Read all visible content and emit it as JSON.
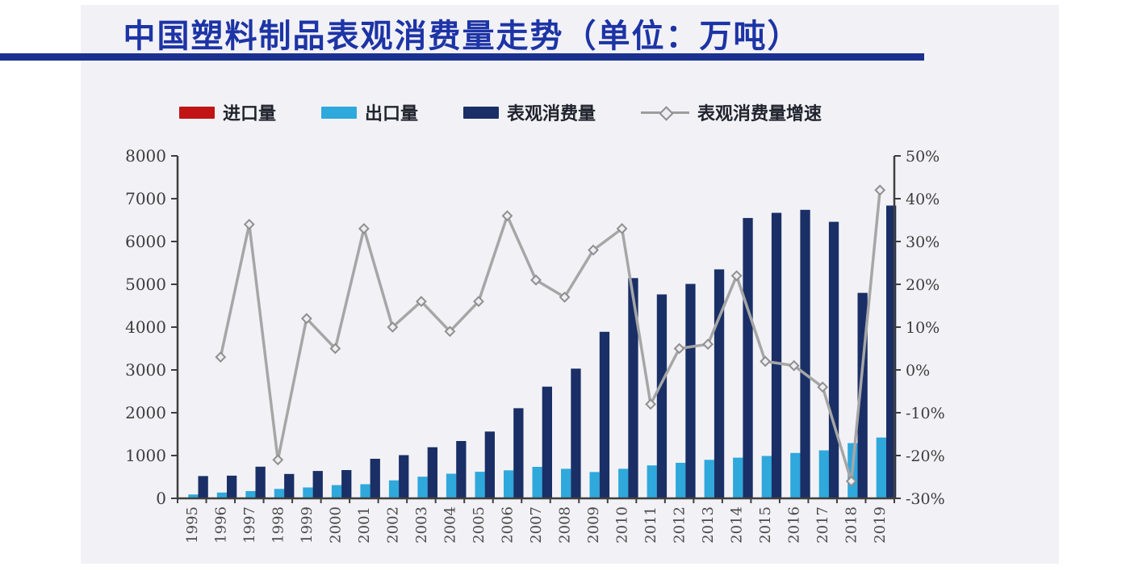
{
  "title": {
    "text": "中国塑料制品表观消费量走势（单位：万吨）",
    "color": "#1d34a6",
    "rule_color": "#1b318f"
  },
  "legend": {
    "items": [
      {
        "label": "进口量",
        "swatch": "bar",
        "color": "#c11515"
      },
      {
        "label": "出口量",
        "swatch": "bar",
        "color": "#2fa8dc"
      },
      {
        "label": "表观消费量",
        "swatch": "bar",
        "color": "#1a2f66"
      },
      {
        "label": "表观消费量增速",
        "swatch": "line",
        "color": "#9d9d9d"
      }
    ]
  },
  "chart_data": {
    "type": "bar",
    "title": "中国塑料制品表观消费量走势（单位：万吨）",
    "categories": [
      "1995",
      "1996",
      "1997",
      "1998",
      "1999",
      "2000",
      "2001",
      "2002",
      "2003",
      "2004",
      "2005",
      "2006",
      "2007",
      "2008",
      "2009",
      "2010",
      "2011",
      "2012",
      "2013",
      "2014",
      "2015",
      "2016",
      "2017",
      "2018",
      "2019"
    ],
    "series": [
      {
        "name": "进口量",
        "type": "bar",
        "axis": "left",
        "color": "#c11515",
        "values": null,
        "note": "import bars are too small to be visible at this scale"
      },
      {
        "name": "出口量",
        "type": "bar",
        "axis": "left",
        "color": "#2fa8dc",
        "values": [
          90,
          135,
          170,
          220,
          255,
          310,
          330,
          420,
          505,
          575,
          620,
          655,
          735,
          690,
          615,
          690,
          770,
          830,
          900,
          950,
          990,
          1060,
          1120,
          1290,
          1420
        ]
      },
      {
        "name": "表观消费量",
        "type": "bar",
        "axis": "left",
        "color": "#1a2f66",
        "values": [
          520,
          530,
          740,
          570,
          640,
          660,
          925,
          1010,
          1195,
          1340,
          1560,
          2105,
          2610,
          3030,
          3890,
          5145,
          4765,
          5010,
          5350,
          6550,
          6670,
          6740,
          6460,
          4800,
          6840
        ]
      },
      {
        "name": "表观消费量增速",
        "type": "line",
        "axis": "right",
        "unit": "%",
        "color": "#a6a6a6",
        "values": [
          null,
          3,
          34,
          -21,
          12,
          5,
          33,
          10,
          16,
          9,
          16,
          36,
          21,
          17,
          28,
          33,
          -8,
          5,
          6,
          22,
          2,
          1,
          -4,
          -26,
          42
        ]
      }
    ],
    "left_axis": {
      "min": 0,
      "max": 8000,
      "tick_step": 1000,
      "ticks": [
        "0",
        "1000",
        "2000",
        "3000",
        "4000",
        "5000",
        "6000",
        "7000",
        "8000"
      ]
    },
    "right_axis": {
      "min": -30,
      "max": 50,
      "tick_step": 10,
      "unit": "%",
      "ticks": [
        "-30%",
        "-20%",
        "-10%",
        "0%",
        "10%",
        "20%",
        "30%",
        "40%",
        "50%"
      ]
    },
    "grid": false,
    "legend_position": "top",
    "x_label_rotation": -90
  }
}
